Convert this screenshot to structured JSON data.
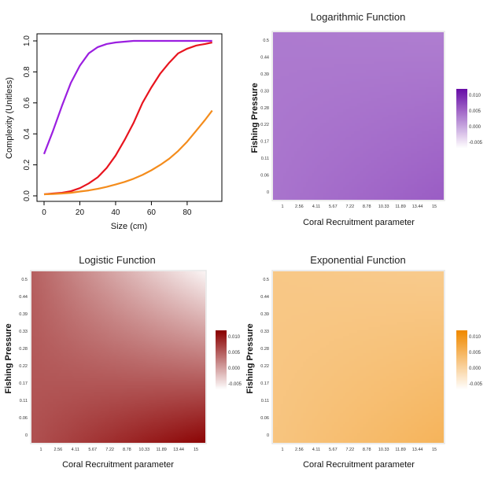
{
  "chart_data": [
    {
      "type": "line",
      "title": "",
      "xlabel": "Size (cm)",
      "ylabel": "Complexity (Unitless)",
      "xlim": [
        0,
        95
      ],
      "ylim": [
        0,
        1
      ],
      "x_ticks": [
        "0",
        "20",
        "40",
        "60",
        "80"
      ],
      "y_ticks": [
        "0.0",
        "0.2",
        "0.4",
        "0.6",
        "0.8",
        "1.0"
      ],
      "x": [
        0,
        5,
        10,
        15,
        20,
        25,
        30,
        35,
        40,
        45,
        50,
        55,
        60,
        65,
        70,
        75,
        80,
        85,
        90,
        94
      ],
      "series": [
        {
          "name": "Logarithmic",
          "color": "#9b1fe0",
          "values": [
            0.27,
            0.42,
            0.58,
            0.73,
            0.84,
            0.92,
            0.96,
            0.98,
            0.99,
            0.995,
            1.0,
            1.0,
            1.0,
            1.0,
            1.0,
            1.0,
            1.0,
            1.0,
            1.0,
            1.0
          ]
        },
        {
          "name": "Logistic",
          "color": "#e8141e",
          "values": [
            0.01,
            0.015,
            0.02,
            0.03,
            0.05,
            0.08,
            0.12,
            0.18,
            0.26,
            0.36,
            0.47,
            0.6,
            0.7,
            0.79,
            0.86,
            0.92,
            0.95,
            0.97,
            0.98,
            0.99
          ]
        },
        {
          "name": "Exponential",
          "color": "#f48c1c",
          "values": [
            0.01,
            0.012,
            0.015,
            0.02,
            0.028,
            0.035,
            0.045,
            0.058,
            0.073,
            0.09,
            0.11,
            0.135,
            0.165,
            0.2,
            0.24,
            0.29,
            0.35,
            0.42,
            0.49,
            0.55
          ]
        }
      ]
    },
    {
      "type": "heatmap",
      "title": "Logarithmic Function",
      "xlabel": "Coral Recruitment parameter",
      "ylabel": "Fishing Pressure",
      "x_ticks": [
        "1",
        "2.56",
        "4.11",
        "5.67",
        "7.22",
        "8.78",
        "10.33",
        "11.89",
        "13.44",
        "15"
      ],
      "y_ticks": [
        "0",
        "0.06",
        "0.11",
        "0.17",
        "0.22",
        "0.28",
        "0.33",
        "0.39",
        "0.44",
        "0.5"
      ],
      "legend_ticks": [
        "0.010",
        "0.005",
        "0.000",
        "-0.005"
      ],
      "legend_range": [
        -0.007,
        0.012
      ],
      "color_low": "#ffffff",
      "color_high": "#6a0fa8",
      "corners": {
        "bottom_left": 0.004,
        "bottom_right": 0.0058,
        "top_left": 0.0035,
        "top_right": 0.0032
      }
    },
    {
      "type": "heatmap",
      "title": "Logistic Function",
      "xlabel": "Coral Recruitment parameter",
      "ylabel": "Fishing Pressure",
      "x_ticks": [
        "1",
        "2.56",
        "4.11",
        "5.67",
        "7.22",
        "8.78",
        "10.33",
        "11.89",
        "13.44",
        "15"
      ],
      "y_ticks": [
        "0",
        "0.06",
        "0.11",
        "0.17",
        "0.22",
        "0.28",
        "0.33",
        "0.39",
        "0.44",
        "0.5"
      ],
      "legend_ticks": [
        "0.010",
        "0.005",
        "0.000",
        "-0.005"
      ],
      "legend_range": [
        -0.007,
        0.012
      ],
      "color_low": "#ffffff",
      "color_high": "#8a0000",
      "corners": {
        "bottom_left": 0.006,
        "bottom_right": 0.0115,
        "top_left": 0.0048,
        "top_right": -0.006
      }
    },
    {
      "type": "heatmap",
      "title": "Exponential Function",
      "xlabel": "Coral Recruitment parameter",
      "ylabel": "Fishing Pressure",
      "x_ticks": [
        "1",
        "2.56",
        "4.11",
        "5.67",
        "7.22",
        "8.78",
        "10.33",
        "11.89",
        "13.44",
        "15"
      ],
      "y_ticks": [
        "0",
        "0.06",
        "0.11",
        "0.17",
        "0.22",
        "0.28",
        "0.33",
        "0.39",
        "0.44",
        "0.5"
      ],
      "legend_ticks": [
        "0.010",
        "0.005",
        "0.000",
        "-0.005"
      ],
      "legend_range": [
        -0.007,
        0.012
      ],
      "color_low": "#ffffff",
      "color_high": "#f08a00",
      "corners": {
        "bottom_left": 0.0025,
        "bottom_right": 0.0052,
        "top_left": 0.002,
        "top_right": 0.0015
      }
    }
  ]
}
